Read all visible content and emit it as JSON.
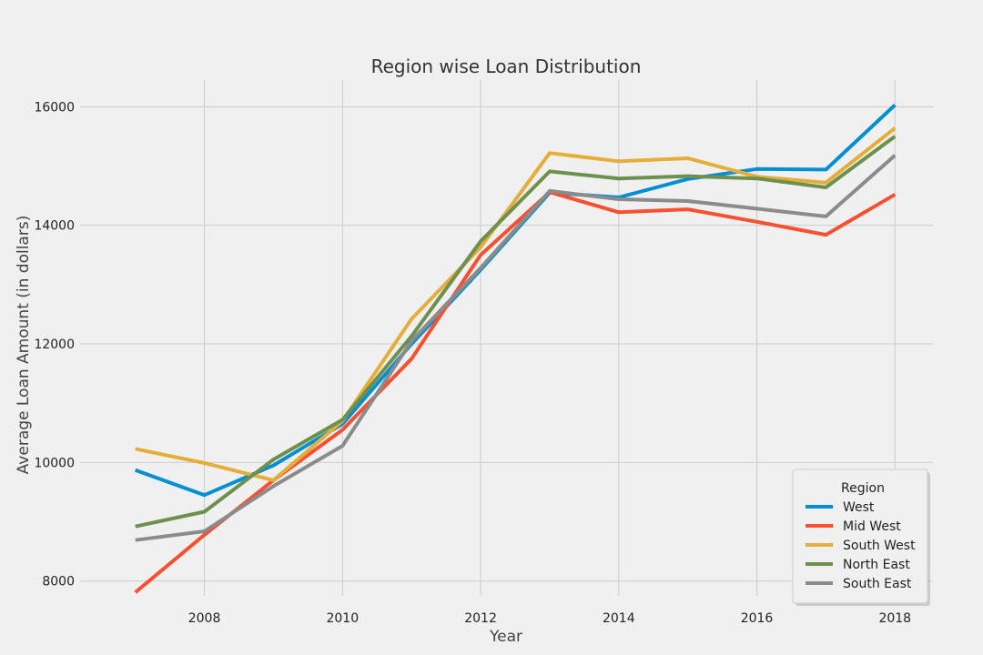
{
  "chart_data": {
    "type": "line",
    "title": "Region wise Loan Distribution",
    "xlabel": "Year",
    "ylabel": "Average Loan Amount (in dollars)",
    "x": [
      2007,
      2008,
      2009,
      2010,
      2011,
      2012,
      2013,
      2014,
      2015,
      2016,
      2017,
      2018
    ],
    "xlim": [
      2006.2,
      2018.55
    ],
    "ylim": [
      7750,
      16450
    ],
    "xticks": [
      2008,
      2010,
      2012,
      2014,
      2016,
      2018
    ],
    "yticks": [
      8000,
      10000,
      12000,
      14000,
      16000
    ],
    "grid": true,
    "legend": {
      "title": "Region",
      "position": "bottom-right"
    },
    "series": [
      {
        "name": "West",
        "color": "#008fd5",
        "values": [
          9870,
          9450,
          9950,
          10650,
          12000,
          13250,
          14550,
          14470,
          14780,
          14950,
          14940,
          16030
        ]
      },
      {
        "name": "Mid West",
        "color": "#fc4f30",
        "values": [
          7810,
          8780,
          9700,
          10550,
          11750,
          13500,
          14560,
          14220,
          14270,
          14060,
          13840,
          14520
        ]
      },
      {
        "name": "South West",
        "color": "#e5ae38",
        "values": [
          10230,
          9990,
          9700,
          10700,
          12420,
          13630,
          15220,
          15080,
          15130,
          14820,
          14720,
          15640
        ]
      },
      {
        "name": "North East",
        "color": "#6d904f",
        "values": [
          8920,
          9170,
          10050,
          10720,
          12130,
          13730,
          14910,
          14790,
          14830,
          14790,
          14640,
          15500
        ]
      },
      {
        "name": "South East",
        "color": "#8b8b8b",
        "values": [
          8690,
          8840,
          9600,
          10280,
          12050,
          13280,
          14580,
          14440,
          14410,
          14280,
          14150,
          15180
        ]
      }
    ]
  }
}
